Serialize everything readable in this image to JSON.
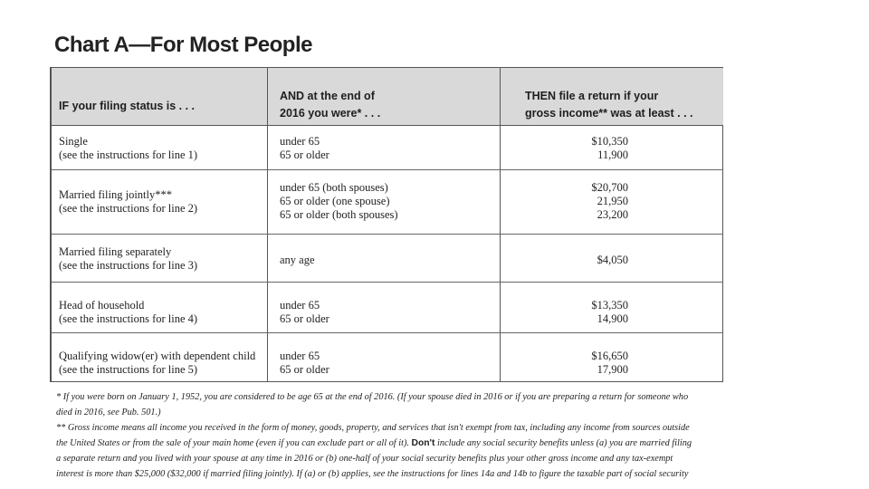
{
  "title": "Chart A—For Most People",
  "headers": {
    "col1": [
      "IF your filing status is . . ."
    ],
    "col2": [
      "AND at the end of",
      "2016 you were* . . ."
    ],
    "col3": [
      "THEN file a return if your",
      "gross income** was at least . . ."
    ]
  },
  "rows": [
    {
      "status": [
        "Single",
        "(see the instructions for line 1)"
      ],
      "ages": [
        "under 65",
        "65 or older"
      ],
      "amounts": [
        "$10,350",
        "11,900"
      ]
    },
    {
      "status": [
        "Married filing jointly***",
        "(see the instructions for line 2)"
      ],
      "ages": [
        "under 65 (both spouses)",
        "65 or older (one spouse)",
        "65 or older (both spouses)"
      ],
      "amounts": [
        "$20,700",
        "21,950",
        "23,200"
      ]
    },
    {
      "status": [
        "Married filing separately",
        "(see the instructions for line 3)"
      ],
      "ages": [
        "any age"
      ],
      "amounts": [
        "$4,050"
      ]
    },
    {
      "status": [
        "Head of household",
        "(see the instructions for line 4)"
      ],
      "ages": [
        "under 65",
        "65 or older"
      ],
      "amounts": [
        "$13,350",
        "14,900"
      ]
    },
    {
      "status": [
        "Qualifying widow(er) with dependent child",
        "(see the instructions for line 5)"
      ],
      "ages": [
        "under 65",
        "65 or older"
      ],
      "amounts": [
        "$16,650",
        "17,900"
      ]
    }
  ],
  "footnotes": {
    "note1_line1": "* If you were born on January 1, 1952, you are considered to be age 65 at the end of 2016. (If your spouse died in 2016 or if you are preparing a return for someone who",
    "note1_line2": "died in 2016, see Pub. 501.)",
    "note2_line1": "** Gross income means all income you received in the form of money, goods, property, and services that isn't exempt from tax, including any income from sources outside",
    "note2_line2_a": "the United States or from the sale of your main home (even if you can exclude part or all of it). ",
    "note2_line2_bold": "Don't",
    "note2_line2_b": " include any social security benefits unless (a) you are married filing",
    "note2_line3": "a separate return and you lived with your spouse at any time in 2016 or (b) one-half of your social security benefits plus your other gross income and any tax-exempt",
    "note2_line4": "interest is more than $25,000 ($32,000 if married filing jointly). If (a) or (b) applies, see the instructions for lines 14a and 14b to figure the taxable part of social security"
  }
}
